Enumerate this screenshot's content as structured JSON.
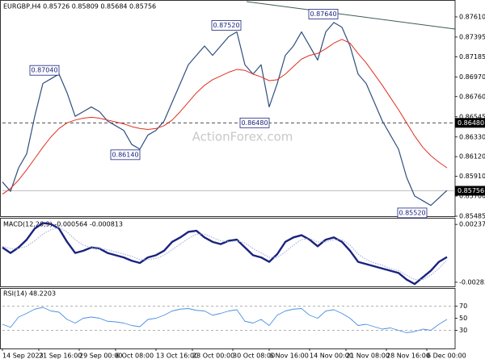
{
  "chart_data": [
    {
      "type": "line",
      "title": "EURGBP,H4  0.85726 0.85809 0.85684 0.85756",
      "watermark": "ActionForex.com",
      "x": [
        0,
        2,
        4,
        6,
        8,
        10,
        12,
        14,
        16,
        18,
        20,
        22,
        24,
        26,
        28,
        30,
        32,
        34,
        36,
        38,
        40,
        42,
        44,
        46,
        48,
        50,
        52,
        54,
        56,
        58,
        60,
        62,
        64,
        66,
        68,
        70,
        72,
        74,
        76,
        78,
        80,
        82,
        84,
        86,
        88,
        90,
        92,
        94,
        96,
        98,
        100,
        102,
        104,
        106,
        108,
        110
      ],
      "series": [
        {
          "name": "EURGBP",
          "color": "#2f4f7f",
          "width": 1.2,
          "values": [
            0.8585,
            0.8575,
            0.86,
            0.8615,
            0.8655,
            0.869,
            0.8695,
            0.87,
            0.868,
            0.8655,
            0.866,
            0.8665,
            0.866,
            0.865,
            0.8645,
            0.864,
            0.8625,
            0.862,
            0.8635,
            0.864,
            0.865,
            0.867,
            0.869,
            0.871,
            0.872,
            0.873,
            0.872,
            0.873,
            0.874,
            0.8745,
            0.871,
            0.87,
            0.871,
            0.8665,
            0.869,
            0.872,
            0.873,
            0.8745,
            0.873,
            0.8715,
            0.8745,
            0.8755,
            0.875,
            0.873,
            0.87,
            0.869,
            0.867,
            0.865,
            0.8635,
            0.862,
            0.859,
            0.857,
            0.8565,
            0.856,
            0.8568,
            0.8576
          ]
        },
        {
          "name": "MA",
          "color": "#e03020",
          "width": 1,
          "values": [
            0.8572,
            0.8578,
            0.8587,
            0.8598,
            0.861,
            0.8622,
            0.8633,
            0.8642,
            0.8648,
            0.8651,
            0.8653,
            0.8654,
            0.8653,
            0.8651,
            0.8649,
            0.8647,
            0.8644,
            0.8642,
            0.8641,
            0.8642,
            0.8645,
            0.8651,
            0.866,
            0.867,
            0.868,
            0.8688,
            0.8694,
            0.8698,
            0.8702,
            0.8705,
            0.8704,
            0.87,
            0.8697,
            0.8693,
            0.8694,
            0.87,
            0.8708,
            0.8716,
            0.872,
            0.8722,
            0.8727,
            0.8733,
            0.8737,
            0.8733,
            0.8722,
            0.8712,
            0.87,
            0.8688,
            0.8675,
            0.8662,
            0.8648,
            0.8634,
            0.8622,
            0.8613,
            0.8606,
            0.86
          ]
        }
      ],
      "xlim": [
        0,
        112
      ],
      "ylim": [
        0.85485,
        0.8779
      ],
      "yticks": [
        {
          "value": 0.8761,
          "label": "0.87610"
        },
        0.87395,
        0.87185,
        {
          "value": 0.8697,
          "label": "0.86970"
        },
        {
          "value": 0.8676,
          "label": "0.86760"
        },
        0.86545,
        {
          "value": 0.8633,
          "label": "0.86330"
        },
        {
          "value": 0.8612,
          "label": "0.86120"
        },
        {
          "value": 0.8591,
          "label": "0.85910"
        },
        {
          "value": 0.857,
          "label": "0.85700"
        },
        0.85485
      ],
      "annotations": [
        {
          "value": 0.8704,
          "label": "0.87040",
          "x": 14
        },
        {
          "value": 0.8752,
          "label": "0.87520",
          "x": 59
        },
        {
          "value": 0.8764,
          "label": "0.87640",
          "x": 83
        },
        {
          "value": 0.8648,
          "label": "0.86480",
          "x": 66
        },
        {
          "value": 0.8614,
          "label": "0.86140",
          "x": 34
        },
        {
          "value": 0.8552,
          "label": "0.85520",
          "x": 105
        }
      ],
      "hlines": [
        {
          "value": 0.8648,
          "label": "0.86480"
        }
      ],
      "last_price": {
        "value": 0.85756,
        "label": "0.85756"
      }
    },
    {
      "type": "line",
      "title": "MACD(12,26,9) -0.000564 -0.000813",
      "x": [
        0,
        2,
        4,
        6,
        8,
        10,
        12,
        14,
        16,
        18,
        20,
        22,
        24,
        26,
        28,
        30,
        32,
        34,
        36,
        38,
        40,
        42,
        44,
        46,
        48,
        50,
        52,
        54,
        56,
        58,
        60,
        62,
        64,
        66,
        68,
        70,
        72,
        74,
        76,
        78,
        80,
        82,
        84,
        86,
        88,
        90,
        92,
        94,
        96,
        98,
        100,
        102,
        104,
        106,
        108,
        110
      ],
      "series": [
        {
          "name": "MACD",
          "color": "#1a237e",
          "width": 2.4,
          "values": [
            0.0003,
            -0.0002,
            0.0003,
            0.001,
            0.002,
            0.0025,
            0.0024,
            0.002,
            0.0008,
            -0.0002,
            0,
            0.0003,
            0.0002,
            -0.0002,
            -0.0004,
            -0.0006,
            -0.0009,
            -0.0011,
            -0.0006,
            -0.0004,
            0,
            0.0008,
            0.0012,
            0.0017,
            0.0018,
            0.0012,
            0.0008,
            0.0006,
            0.0009,
            0.001,
            0.0003,
            -0.0004,
            -0.0006,
            -0.001,
            -0.0003,
            0.0008,
            0.0012,
            0.0014,
            0.001,
            0.0004,
            0.001,
            0.0012,
            0.0008,
            0,
            -0.001,
            -0.0012,
            -0.0014,
            -0.0016,
            -0.0018,
            -0.002,
            -0.0026,
            -0.003,
            -0.0024,
            -0.0018,
            -0.001,
            -0.000564
          ]
        },
        {
          "name": "Signal",
          "color": "#9fa8da",
          "width": 1,
          "style": "dotted",
          "values": [
            0.0004,
            0.0002,
            0.0002,
            0.0004,
            0.0009,
            0.0015,
            0.0019,
            0.0021,
            0.0017,
            0.001,
            0.0005,
            0.0003,
            0.0002,
            0.0001,
            -0.0001,
            -0.0003,
            -0.0005,
            -0.0008,
            -0.0008,
            -0.0007,
            -0.0004,
            0.0001,
            0.0006,
            0.0011,
            0.0015,
            0.0015,
            0.0012,
            0.0009,
            0.0008,
            0.0009,
            0.0007,
            0.0002,
            -0.0002,
            -0.0006,
            -0.0006,
            -0.0001,
            0.0005,
            0.001,
            0.0011,
            0.0008,
            0.0008,
            0.001,
            0.001,
            0.0005,
            -0.0003,
            -0.0008,
            -0.0011,
            -0.0013,
            -0.0016,
            -0.0018,
            -0.0022,
            -0.0026,
            -0.0026,
            -0.0022,
            -0.0016,
            -0.000813
          ]
        }
      ],
      "xlim": [
        0,
        112
      ],
      "ylim": [
        -0.00321,
        0.00297
      ],
      "yticks": [
        0.002375,
        -0.002838
      ]
    },
    {
      "type": "line",
      "title": "RSI(14) 48.2203",
      "x": [
        0,
        2,
        4,
        6,
        8,
        10,
        12,
        14,
        16,
        18,
        20,
        22,
        24,
        26,
        28,
        30,
        32,
        34,
        36,
        38,
        40,
        42,
        44,
        46,
        48,
        50,
        52,
        54,
        56,
        58,
        60,
        62,
        64,
        66,
        68,
        70,
        72,
        74,
        76,
        78,
        80,
        82,
        84,
        86,
        88,
        90,
        92,
        94,
        96,
        98,
        100,
        102,
        104,
        106,
        108,
        110
      ],
      "series": [
        {
          "name": "RSI",
          "color": "#4a90e2",
          "width": 0.9,
          "values": [
            40,
            35,
            52,
            58,
            65,
            68,
            62,
            60,
            48,
            42,
            50,
            52,
            50,
            45,
            44,
            42,
            38,
            36,
            48,
            50,
            55,
            62,
            65,
            66,
            63,
            62,
            55,
            58,
            62,
            64,
            45,
            42,
            48,
            38,
            55,
            62,
            65,
            66,
            55,
            50,
            62,
            64,
            58,
            50,
            38,
            40,
            36,
            32,
            34,
            30,
            26,
            28,
            32,
            30,
            40,
            48.2203
          ]
        }
      ],
      "xlim": [
        0,
        112
      ],
      "ylim": [
        0,
        100
      ],
      "yticks": [
        70,
        50,
        30
      ],
      "levels": [
        70,
        30
      ],
      "xticks": [
        {
          "value": 0,
          "label": "14 Sep 2023"
        },
        {
          "value": 9,
          "label": "21 Sep 16:00"
        },
        {
          "value": 19,
          "label": "29 Sep 00:00"
        },
        {
          "value": 28,
          "label": "6 Oct 08:00"
        },
        {
          "value": 38,
          "label": "13 Oct 16:00"
        },
        {
          "value": 47,
          "label": "23 Oct 00:00"
        },
        {
          "value": 57,
          "label": "30 Oct 08:00"
        },
        {
          "value": 66,
          "label": "6 Nov 16:00"
        },
        {
          "value": 76,
          "label": "14 Nov 00:00"
        },
        {
          "value": 85,
          "label": "21 Nov 08:00"
        },
        {
          "value": 95,
          "label": "28 Nov 16:00"
        },
        {
          "value": 105,
          "label": "6 Dec 00:00"
        }
      ]
    }
  ]
}
